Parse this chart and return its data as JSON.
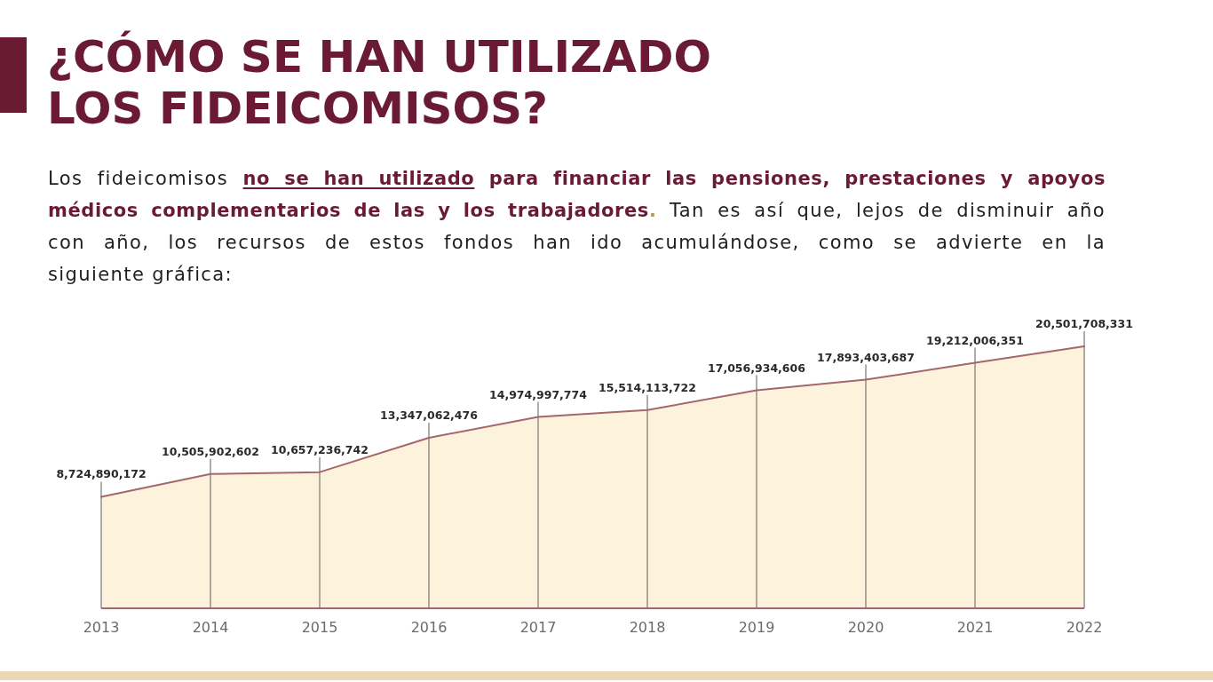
{
  "chart_data": {
    "type": "area",
    "title": "¿CÓMO SE HAN UTILIZADO LOS FIDEICOMISOS?",
    "subtitle": "Los fideicomisos no se han utilizado para financiar las pensiones, prestaciones y apoyos médicos complementarios de las y los trabajadores. Tan es así que, lejos de disminuir año con año, los recursos de estos fondos han ido acumulándose, como se advierte en la siguiente gráfica:",
    "categories": [
      "2013",
      "2014",
      "2015",
      "2016",
      "2017",
      "2018",
      "2019",
      "2020",
      "2021",
      "2022"
    ],
    "values": [
      8724890172,
      10505902602,
      10657236742,
      13347062476,
      14974997774,
      15514113722,
      17056934606,
      17893403687,
      19212006351,
      20501708331
    ],
    "value_labels": [
      "8,724,890,172",
      "10,505,902,602",
      "10,657,236,742",
      "13,347,062,476",
      "14,974,997,774",
      "15,514,113,722",
      "17,056,934,606",
      "17,893,403,687",
      "19,212,006,351",
      "20,501,708,331"
    ],
    "color": "#fdf3dc",
    "grid": "x"
  }
}
